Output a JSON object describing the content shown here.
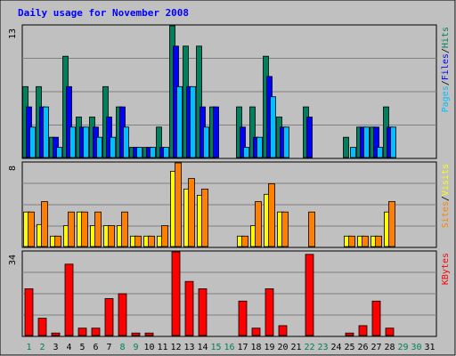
{
  "colors": {
    "background": "#c0c0c0",
    "title": "#0000ff",
    "hits": "#00805c",
    "files": "#0000ff",
    "pages": "#00c0ff",
    "visits": "#ffff00",
    "sites": "#ff8000",
    "kbytes": "#ff0000",
    "grid": "#808080",
    "weekend_label": "#00805c",
    "weekday_label": "#000000"
  },
  "chart_data": {
    "type": "bar",
    "title": "Daily usage for November 2008",
    "categories": [
      "1",
      "2",
      "3",
      "4",
      "5",
      "6",
      "7",
      "8",
      "9",
      "10",
      "11",
      "12",
      "13",
      "14",
      "15",
      "16",
      "17",
      "18",
      "19",
      "20",
      "21",
      "22",
      "23",
      "24",
      "25",
      "26",
      "27",
      "28",
      "29",
      "30",
      "31"
    ],
    "weekend_days": [
      "1",
      "2",
      "8",
      "9",
      "15",
      "16",
      "22",
      "23",
      "29",
      "30"
    ],
    "panels": [
      {
        "name": "hits_files_pages",
        "ymax": 13,
        "ymax_label": "13",
        "legend": [
          "Pages",
          "/",
          "Files",
          "/",
          "Hits"
        ],
        "series": [
          {
            "name": "Hits",
            "values": [
              7,
              7,
              2,
              10,
              4,
              4,
              7,
              5,
              1,
              1,
              3,
              13,
              11,
              11,
              5,
              0,
              5,
              5,
              10,
              4,
              0,
              5,
              0,
              0,
              2,
              3,
              3,
              5,
              0,
              0,
              0
            ]
          },
          {
            "name": "Files",
            "values": [
              5,
              5,
              2,
              7,
              3,
              3,
              4,
              5,
              1,
              1,
              1,
              11,
              7,
              5,
              5,
              0,
              3,
              2,
              8,
              3,
              0,
              4,
              0,
              0,
              0,
              3,
              3,
              3,
              0,
              0,
              0
            ]
          },
          {
            "name": "Pages",
            "values": [
              3,
              5,
              1,
              3,
              3,
              2,
              2,
              3,
              1,
              1,
              1,
              7,
              7,
              3,
              0,
              0,
              1,
              2,
              6,
              3,
              0,
              0,
              0,
              0,
              1,
              3,
              1,
              3,
              0,
              0,
              0
            ]
          }
        ]
      },
      {
        "name": "visits_sites",
        "ymax": 8,
        "ymax_label": "8",
        "legend": [
          "Sites",
          "/",
          "Visits"
        ],
        "series": [
          {
            "name": "Visits",
            "values": [
              3.3,
              2.1,
              1,
              2,
              3.3,
              2,
              2,
              2,
              1,
              1,
              1,
              7.2,
              5.5,
              4.9,
              0,
              0,
              1,
              2,
              5,
              3.3,
              0,
              0,
              0,
              0,
              1,
              1,
              1,
              3.3,
              0,
              0,
              0
            ]
          },
          {
            "name": "Sites",
            "values": [
              3.3,
              4.3,
              1,
              3.3,
              3.3,
              3.3,
              2,
              3.3,
              1,
              1,
              2,
              8,
              6.5,
              5.5,
              0,
              0,
              1,
              4.3,
              6,
              3.3,
              0,
              3.3,
              0,
              0,
              1,
              1,
              1,
              4.3,
              0,
              0,
              0
            ]
          }
        ]
      },
      {
        "name": "kbytes",
        "ymax": 34,
        "ymax_label": "34",
        "legend": [
          "KBytes"
        ],
        "series": [
          {
            "name": "KBytes",
            "values": [
              19,
              7,
              1,
              29,
              3,
              3,
              15,
              17,
              1,
              1,
              0,
              34,
              22,
              19,
              0,
              0,
              14,
              3,
              19,
              4,
              0,
              33,
              0,
              0,
              1,
              4,
              14,
              3,
              0,
              0,
              0
            ]
          }
        ]
      }
    ]
  }
}
